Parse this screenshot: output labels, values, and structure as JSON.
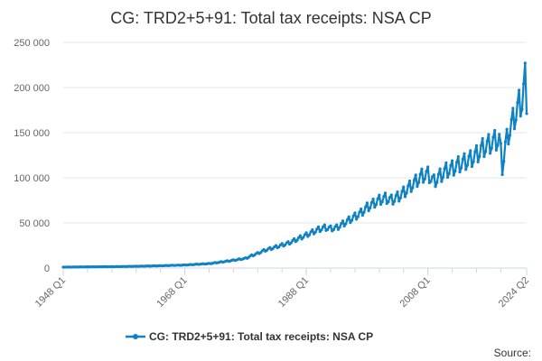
{
  "chart_data": {
    "type": "line",
    "title": "CG: TRD2+5+91: Total tax receipts: NSA CP",
    "xlabel": "",
    "ylabel": "",
    "ylim": [
      0,
      250000
    ],
    "xlim": [
      "1948 Q1",
      "2024 Q2"
    ],
    "y_ticks": [
      0,
      50000,
      100000,
      150000,
      200000,
      250000
    ],
    "y_tick_labels": [
      "0",
      "50 000",
      "100 000",
      "150 000",
      "200 000",
      "250 000"
    ],
    "x_tick_labels": [
      "1948 Q1",
      "1968 Q1",
      "1988 Q1",
      "2008 Q1",
      "2024 Q2"
    ],
    "grid": true,
    "legend": {
      "position": "bottom",
      "entries": [
        "CG: TRD2+5+91: Total tax receipts: NSA CP"
      ]
    },
    "source_label": "Source:",
    "series": [
      {
        "name": "CG: TRD2+5+91: Total tax receipts: NSA CP",
        "color": "#0f82c4",
        "points": [
          [
            "1948 Q1",
            1000
          ],
          [
            "1952 Q1",
            1300
          ],
          [
            "1956 Q1",
            1500
          ],
          [
            "1960 Q1",
            1900
          ],
          [
            "1964 Q1",
            2500
          ],
          [
            "1968 Q1",
            3300
          ],
          [
            "1972 Q1",
            4800
          ],
          [
            "1975 Q1",
            7500
          ],
          [
            "1977 Q1",
            9500
          ],
          [
            "1978 Q1",
            10500
          ],
          [
            "1979 Q1",
            13500
          ],
          [
            "1980 Q1",
            16000
          ],
          [
            "1981 Q1",
            19000
          ],
          [
            "1982 Q1",
            21000
          ],
          [
            "1983 Q1",
            23000
          ],
          [
            "1984 Q1",
            25000
          ],
          [
            "1985 Q1",
            27000
          ],
          [
            "1986 Q1",
            30000
          ],
          [
            "1987 Q1",
            33000
          ],
          [
            "1988 Q1",
            36000
          ],
          [
            "1989 Q1",
            39000
          ],
          [
            "1990 Q1",
            42000
          ],
          [
            "1991 Q1",
            44000
          ],
          [
            "1992 Q1",
            43000
          ],
          [
            "1993 Q1",
            44000
          ],
          [
            "1994 Q1",
            48000
          ],
          [
            "1995 Q1",
            52000
          ],
          [
            "1996 Q1",
            56000
          ],
          [
            "1997 Q1",
            60000
          ],
          [
            "1998 Q1",
            66000
          ],
          [
            "1999 Q1",
            70000
          ],
          [
            "2000 Q1",
            74000
          ],
          [
            "2001 Q1",
            76000
          ],
          [
            "2002 Q1",
            74000
          ],
          [
            "2003 Q1",
            77000
          ],
          [
            "2004 Q1",
            82000
          ],
          [
            "2005 Q1",
            88000
          ],
          [
            "2006 Q1",
            94000
          ],
          [
            "2007 Q1",
            100000
          ],
          [
            "2008 Q1",
            102000
          ],
          [
            "2009 Q1",
            94000
          ],
          [
            "2010 Q1",
            100000
          ],
          [
            "2011 Q1",
            106000
          ],
          [
            "2012 Q1",
            108000
          ],
          [
            "2013 Q1",
            112000
          ],
          [
            "2014 Q1",
            115000
          ],
          [
            "2015 Q1",
            118000
          ],
          [
            "2016 Q1",
            123000
          ],
          [
            "2017 Q1",
            130000
          ],
          [
            "2018 Q1",
            134000
          ],
          [
            "2019 Q1",
            138000
          ],
          [
            "2019 Q4",
            140000
          ],
          [
            "2020 Q2",
            110000
          ],
          [
            "2020 Q4",
            132000
          ],
          [
            "2021 Q2",
            146000
          ],
          [
            "2022 Q1",
            160000
          ],
          [
            "2022 Q3",
            168000
          ],
          [
            "2023 Q1",
            178000
          ],
          [
            "2023 Q3",
            180000
          ],
          [
            "2024 Q1",
            205000
          ],
          [
            "2024 Q2",
            182000
          ]
        ]
      }
    ]
  }
}
